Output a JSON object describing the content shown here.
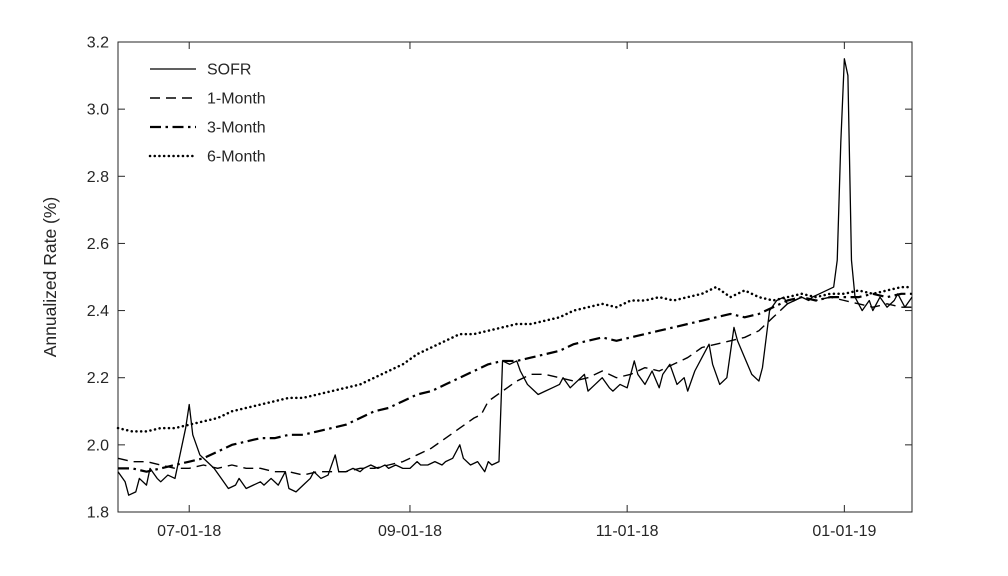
{
  "figure": {
    "background": "#ffffff"
  },
  "chart_data": {
    "type": "line",
    "title": "",
    "xlabel": "",
    "ylabel": "Annualized Rate (%)",
    "xlim": [
      0,
      223
    ],
    "ylim": [
      1.8,
      3.2
    ],
    "ytick_step": 0.2,
    "x_unit": "days since 2018-06-11",
    "grid": false,
    "legend_position": "top-left-inside",
    "x_ticks": [
      {
        "pos": 20,
        "label": "07-01-18"
      },
      {
        "pos": 82,
        "label": "09-01-18"
      },
      {
        "pos": 143,
        "label": "11-01-18"
      },
      {
        "pos": 204,
        "label": "01-01-19"
      }
    ],
    "layout": {
      "axis_color": "#262626",
      "line_color": "#000000",
      "tick_len": 7
    },
    "series": [
      {
        "name": "SOFR",
        "style": "solid",
        "color": "#000000",
        "points": [
          [
            0,
            1.92
          ],
          [
            2,
            1.89
          ],
          [
            3,
            1.85
          ],
          [
            5,
            1.86
          ],
          [
            6,
            1.9
          ],
          [
            8,
            1.88
          ],
          [
            9,
            1.93
          ],
          [
            11,
            1.9
          ],
          [
            12,
            1.89
          ],
          [
            14,
            1.91
          ],
          [
            16,
            1.9
          ],
          [
            17,
            1.95
          ],
          [
            19,
            2.05
          ],
          [
            20,
            2.12
          ],
          [
            21,
            2.03
          ],
          [
            23,
            1.97
          ],
          [
            25,
            1.95
          ],
          [
            27,
            1.93
          ],
          [
            29,
            1.9
          ],
          [
            31,
            1.87
          ],
          [
            33,
            1.88
          ],
          [
            34,
            1.9
          ],
          [
            36,
            1.87
          ],
          [
            38,
            1.88
          ],
          [
            40,
            1.89
          ],
          [
            41,
            1.88
          ],
          [
            43,
            1.9
          ],
          [
            45,
            1.88
          ],
          [
            47,
            1.92
          ],
          [
            48,
            1.87
          ],
          [
            50,
            1.86
          ],
          [
            52,
            1.88
          ],
          [
            54,
            1.9
          ],
          [
            55,
            1.92
          ],
          [
            57,
            1.9
          ],
          [
            59,
            1.91
          ],
          [
            61,
            1.97
          ],
          [
            62,
            1.92
          ],
          [
            64,
            1.92
          ],
          [
            66,
            1.93
          ],
          [
            68,
            1.92
          ],
          [
            69,
            1.93
          ],
          [
            71,
            1.94
          ],
          [
            73,
            1.93
          ],
          [
            75,
            1.94
          ],
          [
            76,
            1.93
          ],
          [
            78,
            1.94
          ],
          [
            80,
            1.93
          ],
          [
            82,
            1.93
          ],
          [
            84,
            1.95
          ],
          [
            85,
            1.94
          ],
          [
            87,
            1.94
          ],
          [
            89,
            1.95
          ],
          [
            91,
            1.94
          ],
          [
            92,
            1.95
          ],
          [
            94,
            1.96
          ],
          [
            96,
            2.0
          ],
          [
            97,
            1.96
          ],
          [
            99,
            1.94
          ],
          [
            101,
            1.95
          ],
          [
            103,
            1.92
          ],
          [
            104,
            1.95
          ],
          [
            105,
            1.94
          ],
          [
            107,
            1.95
          ],
          [
            108,
            2.25
          ],
          [
            110,
            2.24
          ],
          [
            112,
            2.25
          ],
          [
            113,
            2.22
          ],
          [
            115,
            2.18
          ],
          [
            117,
            2.16
          ],
          [
            118,
            2.15
          ],
          [
            120,
            2.16
          ],
          [
            122,
            2.17
          ],
          [
            124,
            2.18
          ],
          [
            125,
            2.2
          ],
          [
            127,
            2.17
          ],
          [
            129,
            2.19
          ],
          [
            131,
            2.21
          ],
          [
            132,
            2.16
          ],
          [
            134,
            2.18
          ],
          [
            136,
            2.2
          ],
          [
            138,
            2.17
          ],
          [
            139,
            2.16
          ],
          [
            141,
            2.18
          ],
          [
            143,
            2.17
          ],
          [
            145,
            2.25
          ],
          [
            146,
            2.21
          ],
          [
            148,
            2.18
          ],
          [
            150,
            2.22
          ],
          [
            152,
            2.17
          ],
          [
            153,
            2.21
          ],
          [
            155,
            2.24
          ],
          [
            157,
            2.18
          ],
          [
            159,
            2.2
          ],
          [
            160,
            2.16
          ],
          [
            162,
            2.22
          ],
          [
            164,
            2.26
          ],
          [
            166,
            2.3
          ],
          [
            167,
            2.24
          ],
          [
            169,
            2.18
          ],
          [
            171,
            2.2
          ],
          [
            173,
            2.35
          ],
          [
            174,
            2.31
          ],
          [
            176,
            2.26
          ],
          [
            178,
            2.21
          ],
          [
            180,
            2.19
          ],
          [
            181,
            2.23
          ],
          [
            183,
            2.4
          ],
          [
            185,
            2.43
          ],
          [
            187,
            2.44
          ],
          [
            188,
            2.42
          ],
          [
            190,
            2.43
          ],
          [
            192,
            2.44
          ],
          [
            194,
            2.43
          ],
          [
            195,
            2.44
          ],
          [
            197,
            2.45
          ],
          [
            199,
            2.46
          ],
          [
            201,
            2.47
          ],
          [
            202,
            2.55
          ],
          [
            203,
            2.9
          ],
          [
            204,
            3.15
          ],
          [
            205,
            3.1
          ],
          [
            206,
            2.55
          ],
          [
            207,
            2.44
          ],
          [
            209,
            2.4
          ],
          [
            211,
            2.43
          ],
          [
            212,
            2.4
          ],
          [
            214,
            2.44
          ],
          [
            216,
            2.41
          ],
          [
            218,
            2.43
          ],
          [
            219,
            2.45
          ],
          [
            221,
            2.41
          ],
          [
            223,
            2.44
          ]
        ]
      },
      {
        "name": "1-Month",
        "style": "dashed",
        "color": "#000000",
        "points": [
          [
            0,
            1.96
          ],
          [
            4,
            1.95
          ],
          [
            8,
            1.95
          ],
          [
            12,
            1.94
          ],
          [
            16,
            1.93
          ],
          [
            20,
            1.93
          ],
          [
            24,
            1.94
          ],
          [
            28,
            1.93
          ],
          [
            32,
            1.94
          ],
          [
            36,
            1.93
          ],
          [
            40,
            1.93
          ],
          [
            44,
            1.92
          ],
          [
            48,
            1.92
          ],
          [
            52,
            1.91
          ],
          [
            56,
            1.92
          ],
          [
            60,
            1.92
          ],
          [
            64,
            1.92
          ],
          [
            68,
            1.93
          ],
          [
            72,
            1.93
          ],
          [
            76,
            1.94
          ],
          [
            80,
            1.95
          ],
          [
            84,
            1.97
          ],
          [
            88,
            1.99
          ],
          [
            92,
            2.02
          ],
          [
            96,
            2.05
          ],
          [
            100,
            2.08
          ],
          [
            102,
            2.09
          ],
          [
            104,
            2.13
          ],
          [
            108,
            2.16
          ],
          [
            112,
            2.19
          ],
          [
            116,
            2.21
          ],
          [
            120,
            2.21
          ],
          [
            124,
            2.2
          ],
          [
            128,
            2.19
          ],
          [
            132,
            2.2
          ],
          [
            136,
            2.22
          ],
          [
            140,
            2.2
          ],
          [
            144,
            2.21
          ],
          [
            148,
            2.23
          ],
          [
            152,
            2.22
          ],
          [
            156,
            2.24
          ],
          [
            160,
            2.26
          ],
          [
            164,
            2.29
          ],
          [
            168,
            2.3
          ],
          [
            172,
            2.31
          ],
          [
            176,
            2.32
          ],
          [
            180,
            2.34
          ],
          [
            184,
            2.38
          ],
          [
            188,
            2.42
          ],
          [
            192,
            2.44
          ],
          [
            196,
            2.43
          ],
          [
            200,
            2.44
          ],
          [
            204,
            2.43
          ],
          [
            208,
            2.42
          ],
          [
            212,
            2.41
          ],
          [
            216,
            2.42
          ],
          [
            220,
            2.41
          ],
          [
            223,
            2.41
          ]
        ]
      },
      {
        "name": "3-Month",
        "style": "dashdot",
        "color": "#000000",
        "points": [
          [
            0,
            1.93
          ],
          [
            4,
            1.93
          ],
          [
            8,
            1.92
          ],
          [
            12,
            1.93
          ],
          [
            16,
            1.94
          ],
          [
            20,
            1.95
          ],
          [
            24,
            1.96
          ],
          [
            28,
            1.98
          ],
          [
            32,
            2.0
          ],
          [
            36,
            2.01
          ],
          [
            40,
            2.02
          ],
          [
            44,
            2.02
          ],
          [
            48,
            2.03
          ],
          [
            52,
            2.03
          ],
          [
            56,
            2.04
          ],
          [
            60,
            2.05
          ],
          [
            64,
            2.06
          ],
          [
            68,
            2.08
          ],
          [
            72,
            2.1
          ],
          [
            76,
            2.11
          ],
          [
            80,
            2.13
          ],
          [
            84,
            2.15
          ],
          [
            88,
            2.16
          ],
          [
            92,
            2.18
          ],
          [
            96,
            2.2
          ],
          [
            100,
            2.22
          ],
          [
            104,
            2.24
          ],
          [
            108,
            2.25
          ],
          [
            112,
            2.25
          ],
          [
            116,
            2.26
          ],
          [
            120,
            2.27
          ],
          [
            124,
            2.28
          ],
          [
            128,
            2.3
          ],
          [
            132,
            2.31
          ],
          [
            136,
            2.32
          ],
          [
            140,
            2.31
          ],
          [
            144,
            2.32
          ],
          [
            148,
            2.33
          ],
          [
            152,
            2.34
          ],
          [
            156,
            2.35
          ],
          [
            160,
            2.36
          ],
          [
            164,
            2.37
          ],
          [
            168,
            2.38
          ],
          [
            172,
            2.39
          ],
          [
            176,
            2.38
          ],
          [
            180,
            2.39
          ],
          [
            184,
            2.41
          ],
          [
            188,
            2.43
          ],
          [
            192,
            2.44
          ],
          [
            196,
            2.43
          ],
          [
            200,
            2.44
          ],
          [
            204,
            2.44
          ],
          [
            208,
            2.44
          ],
          [
            212,
            2.45
          ],
          [
            216,
            2.44
          ],
          [
            220,
            2.45
          ],
          [
            223,
            2.45
          ]
        ]
      },
      {
        "name": "6-Month",
        "style": "dotted",
        "color": "#000000",
        "points": [
          [
            0,
            2.05
          ],
          [
            4,
            2.04
          ],
          [
            8,
            2.04
          ],
          [
            12,
            2.05
          ],
          [
            16,
            2.05
          ],
          [
            20,
            2.06
          ],
          [
            24,
            2.07
          ],
          [
            28,
            2.08
          ],
          [
            32,
            2.1
          ],
          [
            36,
            2.11
          ],
          [
            40,
            2.12
          ],
          [
            44,
            2.13
          ],
          [
            48,
            2.14
          ],
          [
            52,
            2.14
          ],
          [
            56,
            2.15
          ],
          [
            60,
            2.16
          ],
          [
            64,
            2.17
          ],
          [
            68,
            2.18
          ],
          [
            72,
            2.2
          ],
          [
            76,
            2.22
          ],
          [
            80,
            2.24
          ],
          [
            84,
            2.27
          ],
          [
            88,
            2.29
          ],
          [
            92,
            2.31
          ],
          [
            96,
            2.33
          ],
          [
            100,
            2.33
          ],
          [
            104,
            2.34
          ],
          [
            108,
            2.35
          ],
          [
            112,
            2.36
          ],
          [
            116,
            2.36
          ],
          [
            120,
            2.37
          ],
          [
            124,
            2.38
          ],
          [
            128,
            2.4
          ],
          [
            132,
            2.41
          ],
          [
            136,
            2.42
          ],
          [
            140,
            2.41
          ],
          [
            144,
            2.43
          ],
          [
            148,
            2.43
          ],
          [
            152,
            2.44
          ],
          [
            156,
            2.43
          ],
          [
            160,
            2.44
          ],
          [
            164,
            2.45
          ],
          [
            168,
            2.47
          ],
          [
            172,
            2.44
          ],
          [
            176,
            2.46
          ],
          [
            180,
            2.44
          ],
          [
            184,
            2.43
          ],
          [
            188,
            2.44
          ],
          [
            192,
            2.45
          ],
          [
            196,
            2.44
          ],
          [
            200,
            2.45
          ],
          [
            204,
            2.45
          ],
          [
            208,
            2.46
          ],
          [
            212,
            2.45
          ],
          [
            216,
            2.46
          ],
          [
            220,
            2.47
          ],
          [
            223,
            2.47
          ]
        ]
      }
    ]
  }
}
